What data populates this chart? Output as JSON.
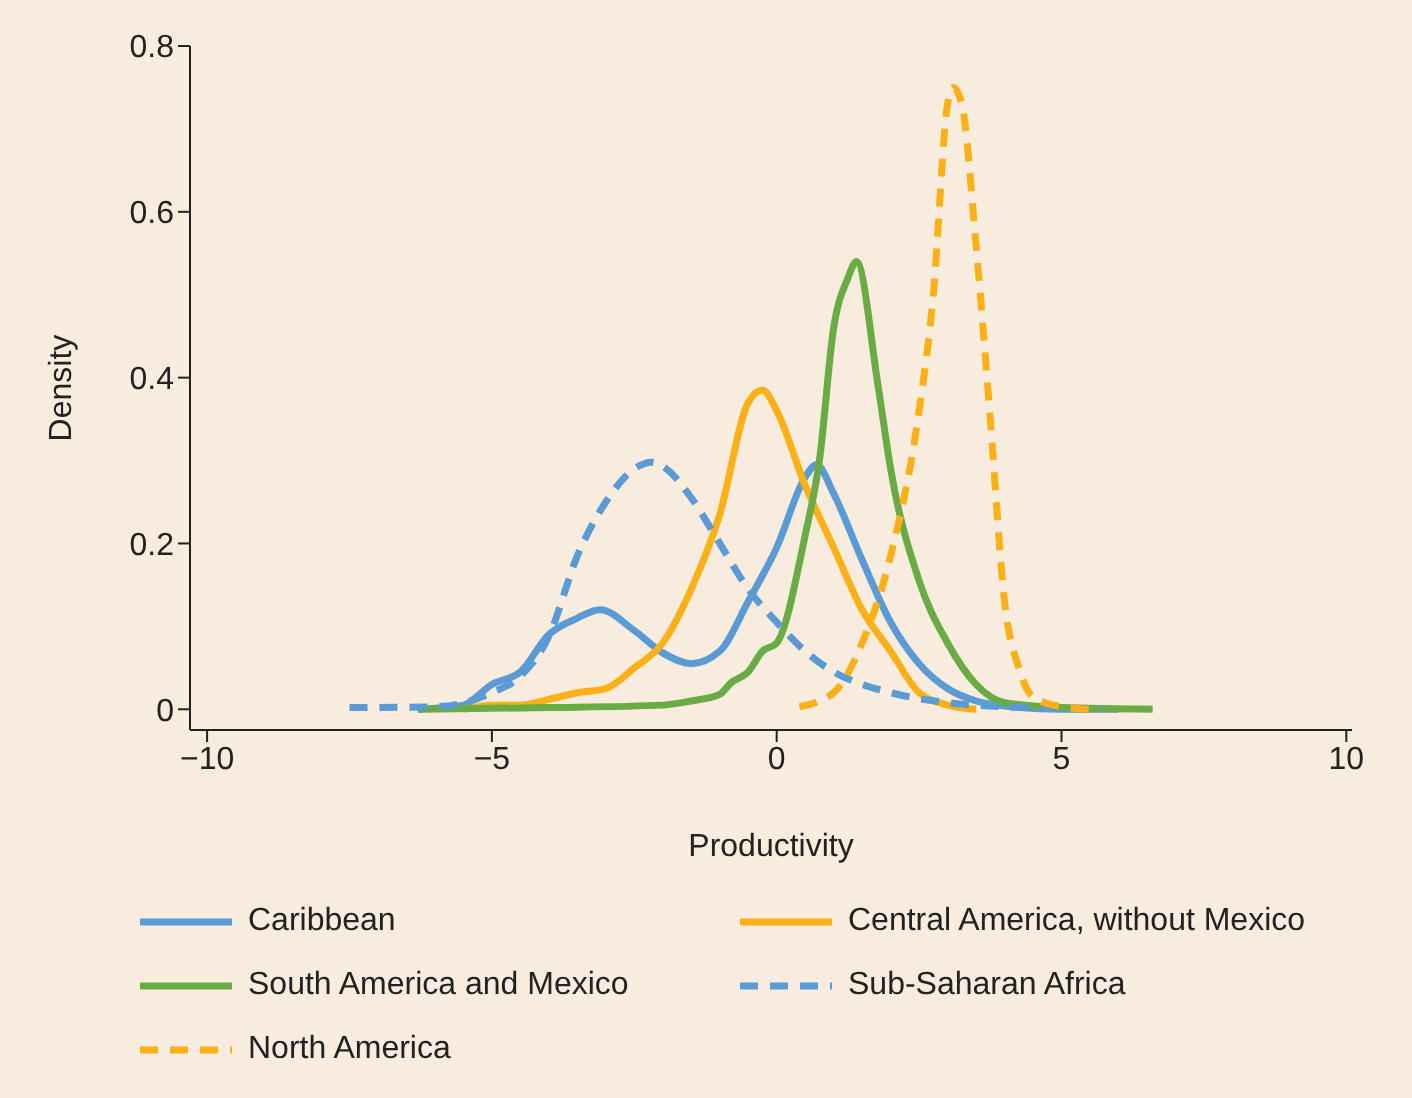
{
  "chart_data": {
    "type": "line",
    "xlabel": "Productivity",
    "ylabel": "Density",
    "xlim": [
      -10.3,
      10.1
    ],
    "xticks": [
      {
        "value": -10,
        "label": "−10"
      },
      {
        "value": -5,
        "label": "−5"
      },
      0,
      5,
      10
    ],
    "ylim": [
      -0.025,
      0.8
    ],
    "yticks": [
      0,
      0.2,
      0.4,
      0.6,
      0.8
    ],
    "grid": false,
    "legend": "bottom",
    "marker": "none",
    "series": [
      {
        "name": "Caribbean",
        "color": "#5b9bd5",
        "line_style": "solid",
        "x": [
          -6.3,
          -5.5,
          -5,
          -4.5,
          -4,
          -3.5,
          -3.1,
          -2.5,
          -2,
          -1.5,
          -1,
          -0.5,
          0,
          0.5,
          0.7,
          1,
          1.5,
          2,
          2.5,
          3,
          3.5,
          4,
          5,
          6
        ],
        "values": [
          0,
          0.005,
          0.03,
          0.045,
          0.09,
          0.11,
          0.12,
          0.095,
          0.068,
          0.055,
          0.07,
          0.13,
          0.195,
          0.28,
          0.295,
          0.26,
          0.18,
          0.105,
          0.055,
          0.025,
          0.01,
          0.004,
          0,
          0
        ]
      },
      {
        "name": "Central America, without Mexico",
        "color": "#fbb018",
        "line_style": "solid",
        "x": [
          -5.5,
          -5,
          -4.5,
          -4,
          -3.5,
          -3,
          -2.5,
          -2,
          -1.5,
          -1,
          -0.5,
          -0.25,
          0,
          0.5,
          1,
          1.5,
          2,
          2.5,
          3,
          3.5
        ],
        "values": [
          0,
          0.005,
          0.005,
          0.012,
          0.02,
          0.025,
          0.05,
          0.08,
          0.145,
          0.235,
          0.37,
          0.385,
          0.36,
          0.27,
          0.195,
          0.12,
          0.07,
          0.02,
          0.005,
          0
        ]
      },
      {
        "name": "South America and Mexico",
        "color": "#6aab45",
        "line_style": "solid",
        "x": [
          -6.3,
          -4,
          -2,
          -1.5,
          -1,
          -0.8,
          -0.5,
          -0.25,
          0,
          0.5,
          0.75,
          1,
          1.25,
          1.4,
          1.78,
          2,
          2.5,
          3,
          3.5,
          4,
          5,
          6.6
        ],
        "values": [
          0,
          0.002,
          0.005,
          0.01,
          0.018,
          0.032,
          0.045,
          0.07,
          0.08,
          0.21,
          0.3,
          0.46,
          0.52,
          0.54,
          0.39,
          0.29,
          0.155,
          0.08,
          0.03,
          0.008,
          0.002,
          0
        ]
      },
      {
        "name": "Sub-Saharan Africa",
        "color": "#5b9bd5",
        "line_style": "dashed",
        "x": [
          -7.5,
          -6,
          -5,
          -4.5,
          -4,
          -3.5,
          -3,
          -2.5,
          -2.2,
          -2,
          -1.5,
          -1,
          -0.5,
          0,
          0.5,
          1,
          1.5,
          2,
          3,
          4,
          5,
          5.7
        ],
        "values": [
          0.002,
          0.003,
          0.02,
          0.04,
          0.088,
          0.185,
          0.25,
          0.29,
          0.298,
          0.293,
          0.255,
          0.2,
          0.145,
          0.105,
          0.07,
          0.045,
          0.03,
          0.02,
          0.008,
          0.003,
          0.001,
          0
        ]
      },
      {
        "name": "North America",
        "color": "#fbb018",
        "line_style": "dashed",
        "x": [
          0.4,
          1,
          1.5,
          2,
          2.5,
          2.75,
          3,
          3.1,
          3.25,
          3.5,
          3.75,
          4,
          4.25,
          4.5,
          5,
          5.5
        ],
        "values": [
          0.003,
          0.02,
          0.08,
          0.185,
          0.36,
          0.5,
          0.73,
          0.75,
          0.73,
          0.56,
          0.35,
          0.13,
          0.05,
          0.015,
          0.003,
          0
        ]
      }
    ]
  }
}
